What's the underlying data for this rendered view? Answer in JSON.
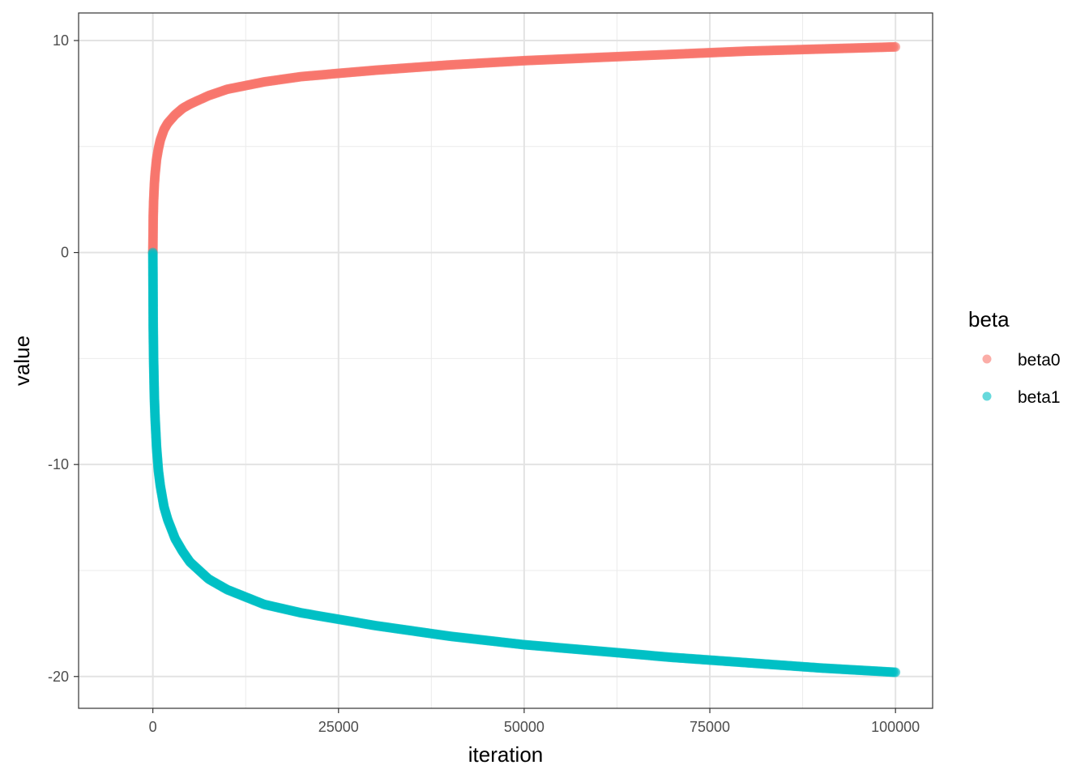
{
  "chart_data": {
    "type": "scatter",
    "title": "",
    "xlabel": "iteration",
    "ylabel": "value",
    "xlim": [
      -10000,
      105000
    ],
    "ylim": [
      -21.5,
      11.3
    ],
    "xticks": [
      0,
      25000,
      50000,
      75000,
      100000
    ],
    "xtick_labels": [
      "0",
      "25000",
      "50000",
      "75000",
      "100000"
    ],
    "yticks": [
      10,
      0,
      -10,
      -20
    ],
    "ytick_labels": [
      "10",
      "0",
      "-10",
      "-20"
    ],
    "grid": true,
    "legend": {
      "title": "beta",
      "placement": "right"
    },
    "series": [
      {
        "name": "beta0",
        "color": "#F8766D",
        "x": [
          0,
          50,
          100,
          200,
          300,
          500,
          750,
          1000,
          1500,
          2000,
          3000,
          4000,
          5000,
          7500,
          10000,
          15000,
          20000,
          25000,
          30000,
          40000,
          50000,
          60000,
          70000,
          80000,
          90000,
          100000
        ],
        "values": [
          0,
          1.7,
          2.4,
          3.2,
          3.7,
          4.4,
          4.9,
          5.3,
          5.8,
          6.1,
          6.5,
          6.8,
          7.0,
          7.4,
          7.7,
          8.05,
          8.3,
          8.45,
          8.6,
          8.85,
          9.05,
          9.2,
          9.35,
          9.5,
          9.6,
          9.7
        ]
      },
      {
        "name": "beta1",
        "color": "#00BFC4",
        "x": [
          0,
          50,
          100,
          200,
          300,
          500,
          750,
          1000,
          1500,
          2000,
          3000,
          4000,
          5000,
          7500,
          10000,
          15000,
          20000,
          25000,
          30000,
          40000,
          50000,
          60000,
          70000,
          80000,
          90000,
          100000
        ],
        "values": [
          0,
          -3.5,
          -5.0,
          -6.8,
          -7.8,
          -9.2,
          -10.3,
          -11.0,
          -12.0,
          -12.6,
          -13.5,
          -14.1,
          -14.6,
          -15.4,
          -15.9,
          -16.6,
          -17.0,
          -17.3,
          -17.6,
          -18.1,
          -18.5,
          -18.8,
          -19.1,
          -19.35,
          -19.6,
          -19.8
        ]
      }
    ]
  }
}
